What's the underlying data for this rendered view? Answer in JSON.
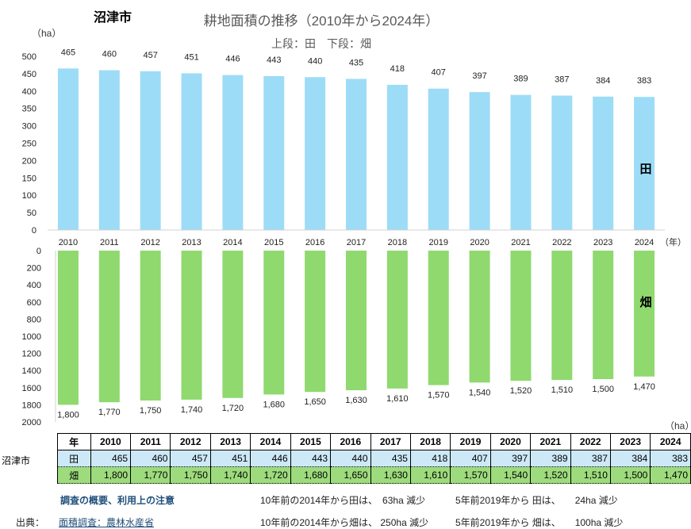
{
  "city": "沼津市",
  "chart_title": "耕地面積の推移（2010年から2024年）",
  "chart_subtitle": "上段：田　下段：畑",
  "unit_top": "（ha）",
  "unit_bottom": "（ha）",
  "year_suffix": "（年）",
  "chart_data": [
    {
      "type": "bar",
      "categories": [
        "2010",
        "2011",
        "2012",
        "2013",
        "2014",
        "2015",
        "2016",
        "2017",
        "2018",
        "2019",
        "2020",
        "2021",
        "2022",
        "2023",
        "2024"
      ],
      "series": [
        {
          "name": "田",
          "values": [
            465,
            460,
            457,
            451,
            446,
            443,
            440,
            435,
            418,
            407,
            397,
            389,
            387,
            384,
            383
          ]
        }
      ],
      "ylim": [
        0,
        500
      ],
      "yticks": [
        0,
        50,
        100,
        150,
        200,
        250,
        300,
        350,
        400,
        450,
        500
      ],
      "ylabel": "（ha）",
      "color": "#9ddcf7"
    },
    {
      "type": "bar",
      "categories": [
        "2010",
        "2011",
        "2012",
        "2013",
        "2014",
        "2015",
        "2016",
        "2017",
        "2018",
        "2019",
        "2020",
        "2021",
        "2022",
        "2023",
        "2024"
      ],
      "series": [
        {
          "name": "畑",
          "values": [
            1800,
            1770,
            1750,
            1740,
            1720,
            1680,
            1650,
            1630,
            1610,
            1570,
            1540,
            1520,
            1510,
            1500,
            1470
          ]
        }
      ],
      "ylim": [
        0,
        2000
      ],
      "yticks": [
        0,
        200,
        400,
        600,
        800,
        1000,
        1200,
        1400,
        1600,
        1800,
        2000
      ],
      "inverted": true,
      "ylabel": "（ha）",
      "color": "#8fd96f"
    }
  ],
  "table": {
    "row_label": "沼津市",
    "year_header": "年",
    "years": [
      "2010",
      "2011",
      "2012",
      "2013",
      "2014",
      "2015",
      "2016",
      "2017",
      "2018",
      "2019",
      "2020",
      "2021",
      "2022",
      "2023",
      "2024"
    ],
    "rows": [
      {
        "name": "田",
        "values": [
          "465",
          "460",
          "457",
          "451",
          "446",
          "443",
          "440",
          "435",
          "418",
          "407",
          "397",
          "389",
          "387",
          "384",
          "383"
        ]
      },
      {
        "name": "畑",
        "values": [
          "1,800",
          "1,770",
          "1,750",
          "1,740",
          "1,720",
          "1,680",
          "1,650",
          "1,630",
          "1,610",
          "1,570",
          "1,540",
          "1,520",
          "1,510",
          "1,500",
          "1,470"
        ]
      }
    ]
  },
  "notes": {
    "overview_link": "調査の概要、利用上の注意",
    "source_label": "出典：",
    "source_link": "面積調査：農林水産省",
    "ta_10yr": "10年前の2014年から田は、　63ha 減少",
    "ta_5yr": "5年前2019年から 田は、　　24ha 減少",
    "ha_10yr": "10年前の2014年から畑は、 250ha 減少",
    "ha_5yr": "5年前2019年から 畑は、　　100ha 減少"
  }
}
